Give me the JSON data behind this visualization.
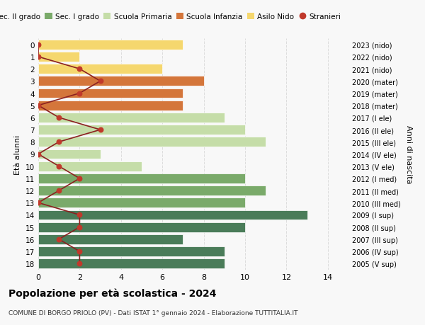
{
  "ages": [
    18,
    17,
    16,
    15,
    14,
    13,
    12,
    11,
    10,
    9,
    8,
    7,
    6,
    5,
    4,
    3,
    2,
    1,
    0
  ],
  "right_labels": [
    "2005 (V sup)",
    "2006 (IV sup)",
    "2007 (III sup)",
    "2008 (II sup)",
    "2009 (I sup)",
    "2010 (III med)",
    "2011 (II med)",
    "2012 (I med)",
    "2013 (V ele)",
    "2014 (IV ele)",
    "2015 (III ele)",
    "2016 (II ele)",
    "2017 (I ele)",
    "2018 (mater)",
    "2019 (mater)",
    "2020 (mater)",
    "2021 (nido)",
    "2022 (nido)",
    "2023 (nido)"
  ],
  "bar_values": [
    9,
    9,
    7,
    10,
    13,
    10,
    11,
    10,
    5,
    3,
    11,
    10,
    9,
    7,
    7,
    8,
    6,
    2,
    7
  ],
  "bar_colors": [
    "#4a7c59",
    "#4a7c59",
    "#4a7c59",
    "#4a7c59",
    "#4a7c59",
    "#7aaa6a",
    "#7aaa6a",
    "#7aaa6a",
    "#c5dda8",
    "#c5dda8",
    "#c5dda8",
    "#c5dda8",
    "#c5dda8",
    "#d4763b",
    "#d4763b",
    "#d4763b",
    "#f5d76e",
    "#f5d76e",
    "#f5d76e"
  ],
  "stranieri_values": [
    2,
    2,
    1,
    2,
    2,
    0,
    1,
    2,
    1,
    0,
    1,
    3,
    1,
    0,
    2,
    3,
    2,
    0,
    0
  ],
  "xlim": [
    0,
    15
  ],
  "xticks": [
    0,
    2,
    4,
    6,
    8,
    10,
    12,
    14
  ],
  "title_bold": "Popolazione per età scolastica - 2024",
  "subtitle": "COMUNE DI BORGO PRIOLO (PV) - Dati ISTAT 1° gennaio 2024 - Elaborazione TUTTITALIA.IT",
  "ylabel": "Età alunni",
  "right_ylabel": "Anni di nascita",
  "legend_labels": [
    "Sec. II grado",
    "Sec. I grado",
    "Scuola Primaria",
    "Scuola Infanzia",
    "Asilo Nido",
    "Stranieri"
  ],
  "legend_colors": [
    "#4a7c59",
    "#7aaa6a",
    "#c5dda8",
    "#d4763b",
    "#f5d76e",
    "#c0392b"
  ],
  "stranieri_color": "#c0392b",
  "line_color": "#8b2020",
  "bg_color": "#f8f8f8",
  "grid_color": "#dddddd"
}
